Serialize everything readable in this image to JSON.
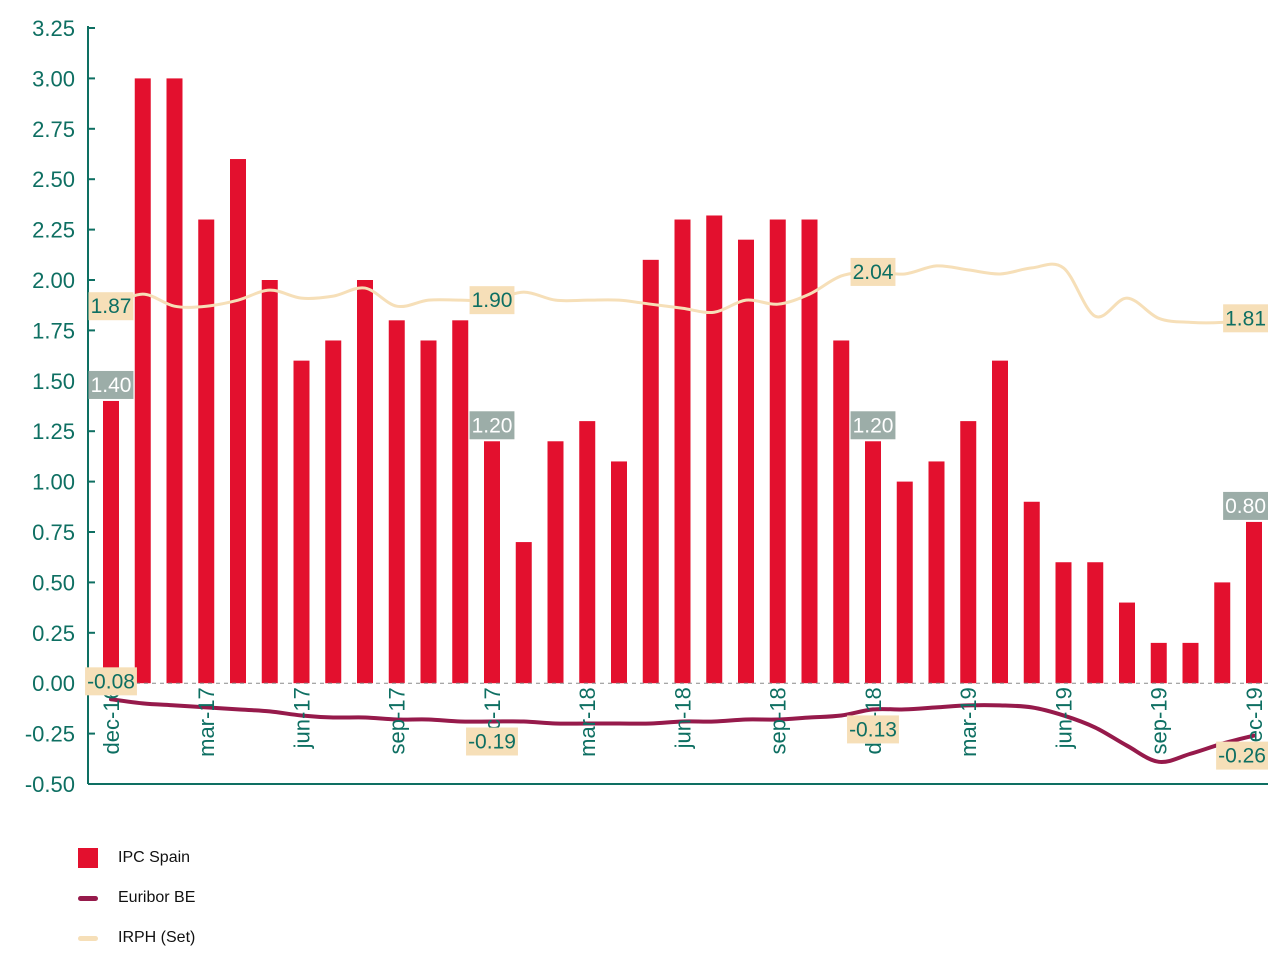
{
  "chart_data": {
    "type": "bar",
    "categories": [
      "dec-16",
      "jan-17",
      "feb-17",
      "mar-17",
      "apr-17",
      "may-17",
      "jun-17",
      "jul-17",
      "aug-17",
      "sep-17",
      "oct-17",
      "nov-17",
      "dec-17",
      "jan-18",
      "feb-18",
      "mar-18",
      "apr-18",
      "may-18",
      "jun-18",
      "jul-18",
      "aug-18",
      "sep-18",
      "oct-18",
      "nov-18",
      "dec-18",
      "jan-19",
      "feb-19",
      "mar-19",
      "apr-19",
      "may-19",
      "jun-19",
      "jul-19",
      "aug-19",
      "sep-19",
      "oct-19",
      "nov-19",
      "dec-19"
    ],
    "x_tick_labels": [
      "dec-16",
      "mar-17",
      "jun-17",
      "sep-17",
      "dec-17",
      "mar-18",
      "jun-18",
      "sep-18",
      "dec-18",
      "mar-19",
      "jun-19",
      "sep-19",
      "dec-19"
    ],
    "y_tick_labels": [
      "3.25",
      "3.00",
      "2.75",
      "2.50",
      "2.25",
      "2.00",
      "1.75",
      "1.50",
      "1.25",
      "1.00",
      "0.75",
      "0.50",
      "0.25",
      "0.00",
      "-0.25",
      "-0.50"
    ],
    "ylim": [
      -0.5,
      3.25
    ],
    "y_step": 0.25,
    "series": [
      {
        "name": "IPC Spain",
        "kind": "bar",
        "color": "#e3102e",
        "values": [
          1.4,
          3.0,
          3.0,
          2.3,
          2.6,
          2.0,
          1.6,
          1.7,
          2.0,
          1.8,
          1.7,
          1.8,
          1.2,
          0.7,
          1.2,
          1.3,
          1.1,
          2.1,
          2.3,
          2.32,
          2.2,
          2.3,
          2.3,
          1.7,
          1.2,
          1.0,
          1.1,
          1.3,
          1.6,
          0.9,
          0.6,
          0.6,
          0.4,
          0.2,
          0.2,
          0.5,
          0.8
        ]
      },
      {
        "name": "Euribor BE",
        "kind": "line",
        "color": "#961a4b",
        "values": [
          -0.08,
          -0.1,
          -0.11,
          -0.12,
          -0.13,
          -0.14,
          -0.16,
          -0.17,
          -0.17,
          -0.18,
          -0.18,
          -0.19,
          -0.19,
          -0.19,
          -0.2,
          -0.2,
          -0.2,
          -0.2,
          -0.19,
          -0.19,
          -0.18,
          -0.18,
          -0.17,
          -0.16,
          -0.13,
          -0.13,
          -0.12,
          -0.11,
          -0.11,
          -0.12,
          -0.16,
          -0.22,
          -0.31,
          -0.39,
          -0.35,
          -0.3,
          -0.26
        ]
      },
      {
        "name": "IRPH (Set)",
        "kind": "line",
        "color": "#f6dfb8",
        "values": [
          1.87,
          1.93,
          1.87,
          1.87,
          1.9,
          1.95,
          1.91,
          1.92,
          1.96,
          1.87,
          1.9,
          1.9,
          1.9,
          1.94,
          1.9,
          1.9,
          1.9,
          1.88,
          1.86,
          1.84,
          1.9,
          1.88,
          1.93,
          2.02,
          2.04,
          2.03,
          2.07,
          2.05,
          2.03,
          2.06,
          2.06,
          1.82,
          1.91,
          1.81,
          1.79,
          1.79,
          1.81
        ]
      }
    ],
    "annotations": [
      {
        "text": "1.40",
        "series": "IPC Spain",
        "index": 0,
        "style": "gray"
      },
      {
        "text": "1.20",
        "series": "IPC Spain",
        "index": 12,
        "style": "gray"
      },
      {
        "text": "1.20",
        "series": "IPC Spain",
        "index": 24,
        "style": "gray"
      },
      {
        "text": "0.80",
        "series": "IPC Spain",
        "index": 36,
        "style": "gray"
      },
      {
        "text": "1.87",
        "series": "IRPH (Set)",
        "index": 0,
        "style": "tan"
      },
      {
        "text": "1.90",
        "series": "IRPH (Set)",
        "index": 12,
        "style": "tan"
      },
      {
        "text": "2.04",
        "series": "IRPH (Set)",
        "index": 24,
        "style": "tan"
      },
      {
        "text": "1.81",
        "series": "IRPH (Set)",
        "index": 36,
        "style": "tan"
      },
      {
        "text": "-0.08",
        "series": "Euribor BE",
        "index": 0,
        "style": "tan"
      },
      {
        "text": "-0.19",
        "series": "Euribor BE",
        "index": 12,
        "style": "tan"
      },
      {
        "text": "-0.13",
        "series": "Euribor BE",
        "index": 24,
        "style": "tan"
      },
      {
        "text": "-0.26",
        "series": "Euribor BE",
        "index": 36,
        "style": "tan"
      }
    ],
    "grid": false,
    "legend_position": "bottom-left"
  },
  "colors": {
    "axis": "#0e6f62",
    "label_gray_bg": "#9cada8",
    "label_gray_text": "#ffffff",
    "label_tan_bg": "#f6dfb8",
    "label_tan_text": "#0e6f62"
  },
  "legend": [
    {
      "label": "IPC Spain",
      "shape": "box",
      "color": "#e3102e"
    },
    {
      "label": "Euribor BE",
      "shape": "line",
      "color": "#961a4b"
    },
    {
      "label": "IRPH (Set)",
      "shape": "line",
      "color": "#f6dfb8"
    }
  ]
}
